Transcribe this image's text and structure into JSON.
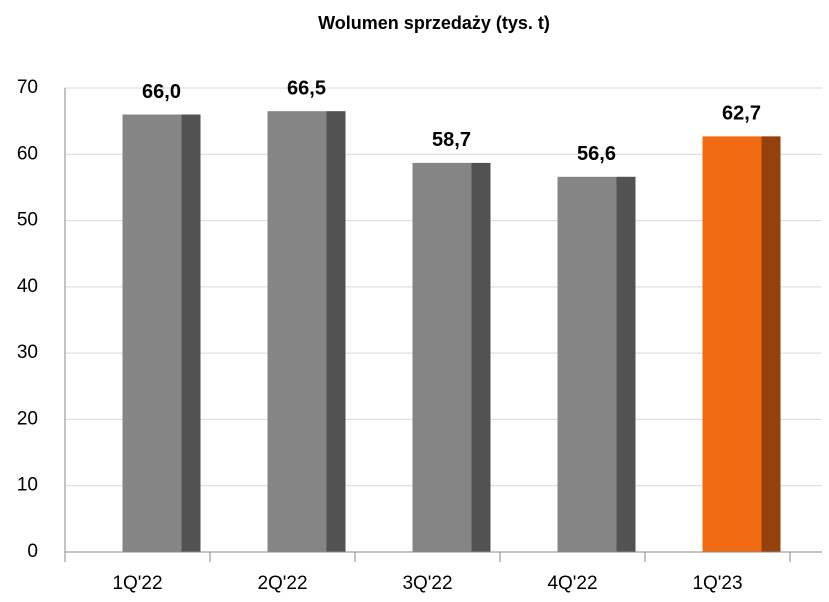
{
  "chart_data": {
    "type": "bar",
    "title": "Wolumen sprzedaży  (tys. t)",
    "categories": [
      "1Q'22",
      "2Q'22",
      "3Q'22",
      "4Q'22",
      "1Q'23"
    ],
    "values": [
      66.0,
      66.5,
      58.7,
      56.6,
      62.7
    ],
    "value_labels": [
      "66,0",
      "66,5",
      "58,7",
      "56,6",
      "62,7"
    ],
    "colors": [
      "#858585",
      "#858585",
      "#858585",
      "#858585",
      "#f26a12"
    ],
    "ylim": [
      0,
      70
    ],
    "yticks": [
      0,
      10,
      20,
      30,
      40,
      50,
      60,
      70
    ],
    "grid": true
  }
}
